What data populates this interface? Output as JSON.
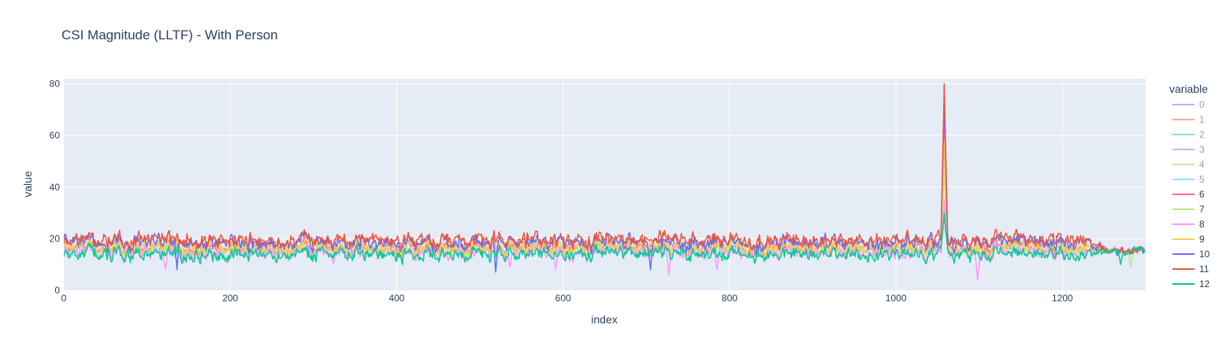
{
  "chart_data": {
    "type": "line",
    "title": "CSI Magnitude (LLTF) - With Person",
    "xlabel": "index",
    "ylabel": "value",
    "xlim": [
      0,
      1300
    ],
    "ylim": [
      0,
      82
    ],
    "x_ticks": [
      0,
      200,
      400,
      600,
      800,
      1000,
      1200
    ],
    "y_ticks": [
      0,
      20,
      40,
      60,
      80
    ],
    "x_tick_labels": [
      "0",
      "200",
      "400",
      "600",
      "800",
      "1000",
      "1200"
    ],
    "y_tick_labels": [
      "0",
      "20",
      "40",
      "60",
      "80"
    ],
    "grid": true,
    "legend_title": "variable",
    "legend_position": "right",
    "n_points": 1300,
    "series": [
      {
        "name": "0",
        "color": "#636efa",
        "visible": false,
        "base": 17,
        "spread": 3.0,
        "spike": 0,
        "dips": []
      },
      {
        "name": "1",
        "color": "#ef553b",
        "visible": false,
        "base": 16,
        "spread": 3.0,
        "spike": 0,
        "dips": []
      },
      {
        "name": "2",
        "color": "#00cc96",
        "visible": false,
        "base": 16,
        "spread": 3.0,
        "spike": 0,
        "dips": []
      },
      {
        "name": "3",
        "color": "#ab63fa",
        "visible": false,
        "base": 16,
        "spread": 3.0,
        "spike": 0,
        "dips": []
      },
      {
        "name": "4",
        "color": "#ffa15a",
        "visible": false,
        "base": 16,
        "spread": 3.0,
        "spike": 0,
        "dips": []
      },
      {
        "name": "5",
        "color": "#19d3f3",
        "visible": false,
        "base": 16,
        "spread": 3.0,
        "spike": 0,
        "dips": []
      },
      {
        "name": "6",
        "color": "#ff6692",
        "visible": true,
        "base": 16.5,
        "spread": 2.6,
        "spike": 65,
        "dips": []
      },
      {
        "name": "7",
        "color": "#b6e880",
        "visible": true,
        "base": 15.5,
        "spread": 2.6,
        "spike": 48,
        "dips": [
          [
            1282,
            9
          ]
        ]
      },
      {
        "name": "8",
        "color": "#ff97ff",
        "visible": true,
        "base": 14.5,
        "spread": 2.8,
        "spike": 35,
        "dips": [
          [
            122,
            8
          ],
          [
            536,
            9
          ],
          [
            591,
            8
          ],
          [
            727,
            6
          ],
          [
            785,
            8
          ],
          [
            1098,
            4
          ]
        ]
      },
      {
        "name": "9",
        "color": "#fecb52",
        "visible": true,
        "base": 17,
        "spread": 2.8,
        "spike": 58,
        "dips": []
      },
      {
        "name": "10",
        "color": "#636efa",
        "visible": true,
        "base": 18.5,
        "spread": 3.0,
        "spike": 74,
        "dips": [
          [
            136,
            8
          ],
          [
            519,
            7
          ],
          [
            705,
            8
          ]
        ]
      },
      {
        "name": "11",
        "color": "#ef553b",
        "visible": true,
        "base": 19.5,
        "spread": 3.0,
        "spike": 80,
        "dips": []
      },
      {
        "name": "12",
        "color": "#00cc96",
        "visible": true,
        "base": 14,
        "spread": 2.4,
        "spike": 30,
        "dips": [
          [
            1270,
            10
          ]
        ]
      }
    ],
    "spike_index": 1058,
    "settle_index": 1230,
    "settle_level": 15.5
  }
}
